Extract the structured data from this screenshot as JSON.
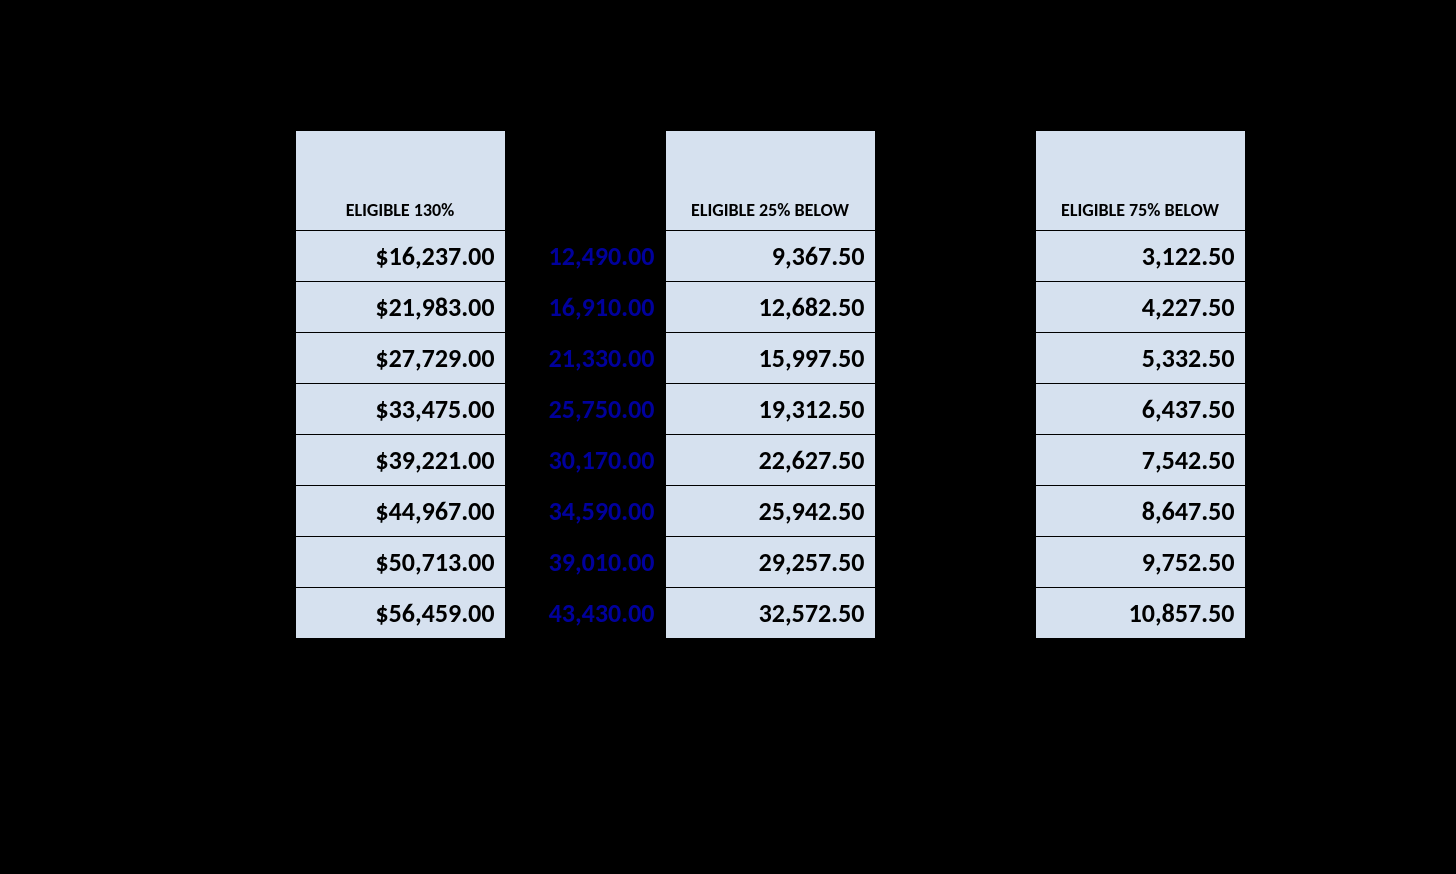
{
  "table": {
    "type": "table",
    "background_color": "#000000",
    "cell_bg_color": "#d6e1ef",
    "border_color": "#000000",
    "text_color": "#000000",
    "highlight_text_color": "#00009c",
    "header_fontsize": 18,
    "cell_fontsize": 26,
    "font_weight": 700,
    "columns": [
      {
        "key": "blank_left",
        "label": "",
        "visible_header": false,
        "has_bg": false
      },
      {
        "key": "eligible_130",
        "label": "ELIGIBLE 130%",
        "visible_header": true,
        "has_bg": true
      },
      {
        "key": "eligible_100",
        "label": "",
        "visible_header": false,
        "has_bg": false,
        "is_highlight": true
      },
      {
        "key": "eligible_25_below",
        "label": "ELIGIBLE 25% BELOW",
        "visible_header": true,
        "has_bg": true
      },
      {
        "key": "blank_gap",
        "label": "",
        "visible_header": false,
        "has_bg": false
      },
      {
        "key": "eligible_75_below",
        "label": "ELIGIBLE 75% BELOW",
        "visible_header": true,
        "has_bg": true
      },
      {
        "key": "blank_right",
        "label": "",
        "visible_header": false,
        "has_bg": false
      }
    ],
    "headers": {
      "eligible_130": "ELIGIBLE 130%",
      "eligible_25_below": "ELIGIBLE 25% BELOW",
      "eligible_75_below": "ELIGIBLE 75% BELOW"
    },
    "rows": [
      {
        "eligible_130": "$16,237.00",
        "eligible_100": "12,490.00",
        "eligible_25_below": "9,367.50",
        "eligible_75_below": "3,122.50"
      },
      {
        "eligible_130": "$21,983.00",
        "eligible_100": "16,910.00",
        "eligible_25_below": "12,682.50",
        "eligible_75_below": "4,227.50"
      },
      {
        "eligible_130": "$27,729.00",
        "eligible_100": "21,330.00",
        "eligible_25_below": "15,997.50",
        "eligible_75_below": "5,332.50"
      },
      {
        "eligible_130": "$33,475.00",
        "eligible_100": "25,750.00",
        "eligible_25_below": "19,312.50",
        "eligible_75_below": "6,437.50"
      },
      {
        "eligible_130": "$39,221.00",
        "eligible_100": "30,170.00",
        "eligible_25_below": "22,627.50",
        "eligible_75_below": "7,542.50"
      },
      {
        "eligible_130": "$44,967.00",
        "eligible_100": "34,590.00",
        "eligible_25_below": "25,942.50",
        "eligible_75_below": "8,647.50"
      },
      {
        "eligible_130": "$50,713.00",
        "eligible_100": "39,010.00",
        "eligible_25_below": "29,257.50",
        "eligible_75_below": "9,752.50"
      },
      {
        "eligible_130": "$56,459.00",
        "eligible_100": "43,430.00",
        "eligible_25_below": "32,572.50",
        "eligible_75_below": "10,857.50"
      }
    ]
  }
}
